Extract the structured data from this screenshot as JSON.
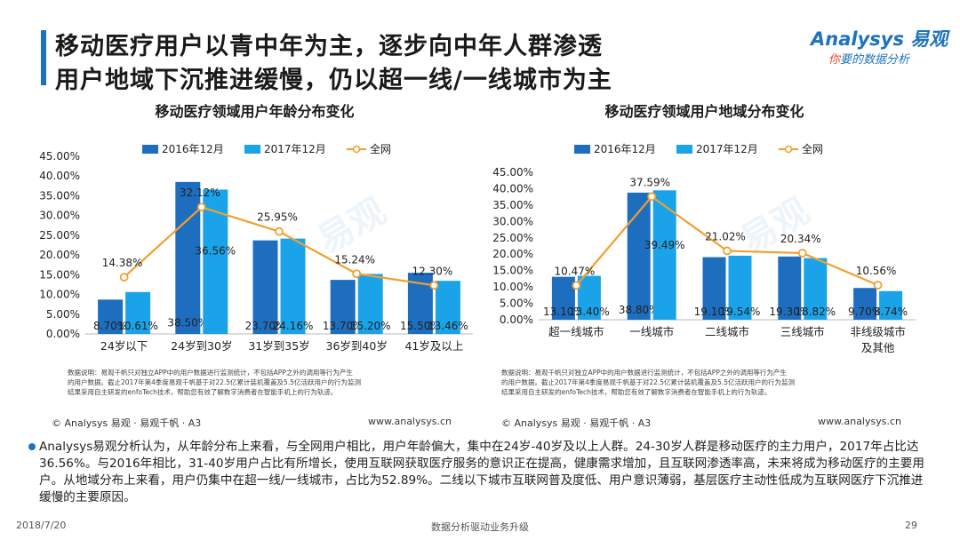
{
  "header": {
    "title_line1": "移动医疗用户以青中年为主，逐步向中年人群渗透",
    "title_line2": "用户地域下沉推进缓慢，仍以超一线/一线城市为主"
  },
  "logo": {
    "main": "Analysys 易观",
    "sub_red": "你",
    "sub_rest": "要的数据分析"
  },
  "watermark": "易观",
  "colors": {
    "series1": "#1e6ec0",
    "series2": "#1aa3e8",
    "line": "#f0a030",
    "accent": "#1e73be"
  },
  "charts": [
    {
      "title": "移动医疗领域用户年龄分布变化",
      "note": [
        "数据说明：易观千帆只对独立APP中的用户数据进行监测统计，不包括APP之外的调用等行为产生",
        "的用户数据。截止2017年第4季度易观千帆基于对22.5亿累计装机覆盖及5.5亿活跃用户的行为监测",
        "结果采用自主研发的enfoTech技术，帮助您有效了解数字消费者在智能手机上的行为轨迹。"
      ],
      "source": "© Analysys 易观 · 易观千帆 · A3",
      "url": "www.analysys.cn"
    },
    {
      "title": "移动医疗领域用户地域分布变化",
      "note": [
        "数据说明：易观千帆只对独立APP中的用户数据进行监测统计，不包括APP之外的调用等行为产生",
        "的用户数据。截止2017年第4季度易观千帆基于对22.5亿累计装机覆盖及5.5亿活跃用户的行为监测",
        "结果采用自主研发的enfoTech技术，帮助您有效了解数字消费者在智能手机上的行为轨迹。"
      ],
      "source": "© Analysys 易观 · 易观千帆 · A3",
      "url": "www.analysys.cn"
    }
  ],
  "chart_data": [
    {
      "type": "bar",
      "title": "移动医疗领域用户年龄分布变化",
      "categories": [
        "24岁以下",
        "24岁到30岁",
        "31岁到35岁",
        "36岁到40岁",
        "41岁及以上"
      ],
      "series": [
        {
          "name": "2016年12月",
          "kind": "bar",
          "values": [
            8.7,
            38.5,
            23.7,
            13.7,
            15.5
          ]
        },
        {
          "name": "2017年12月",
          "kind": "bar",
          "values": [
            10.61,
            36.56,
            24.16,
            15.2,
            13.46
          ]
        },
        {
          "name": "全网",
          "kind": "line",
          "values": [
            14.38,
            32.12,
            25.95,
            15.24,
            12.3
          ]
        }
      ],
      "yticks": [
        "0.00%",
        "5.00%",
        "10.00%",
        "15.00%",
        "20.00%",
        "25.00%",
        "30.00%",
        "35.00%",
        "40.00%",
        "45.00%"
      ],
      "ylim": [
        0,
        45
      ],
      "legend_position": "top"
    },
    {
      "type": "bar",
      "title": "移动医疗领域用户地域分布变化",
      "categories": [
        "超一线城市",
        "一线城市",
        "二线城市",
        "三线城市",
        "非线级城市及其他"
      ],
      "series": [
        {
          "name": "2016年12月",
          "kind": "bar",
          "values": [
            13.1,
            38.8,
            19.1,
            19.3,
            9.7
          ]
        },
        {
          "name": "2017年12月",
          "kind": "bar",
          "values": [
            13.4,
            39.49,
            19.54,
            18.82,
            8.74
          ]
        },
        {
          "name": "全网",
          "kind": "line",
          "values": [
            10.47,
            37.59,
            21.02,
            20.34,
            10.56
          ]
        }
      ],
      "yticks": [
        "0.00%",
        "5.00%",
        "10.00%",
        "15.00%",
        "20.00%",
        "25.00%",
        "30.00%",
        "35.00%",
        "40.00%",
        "45.00%"
      ],
      "ylim": [
        0,
        45
      ],
      "legend_position": "top"
    }
  ],
  "summary": "Analysys易观分析认为，从年龄分布上来看，与全网用户相比，用户年龄偏大，集中在24岁-40岁及以上人群。24-30岁人群是移动医疗的主力用户，2017年占比达36.56%。与2016年相比，31-40岁用户占比有所增长，使用互联网获取医疗服务的意识正在提高，健康需求增加，且互联网渗透率高，未来将成为移动医疗的主要用户。从地域分布上来看，用户仍集中在超一线/一线城市，占比为52.89%。二线以下城市互联网普及度低、用户意识薄弱，基层医疗主动性低成为互联网医疗下沉推进缓慢的主要原因。",
  "footer": {
    "date": "2018/7/20",
    "slogan": "数据分析驱动业务升级",
    "page": "29"
  }
}
